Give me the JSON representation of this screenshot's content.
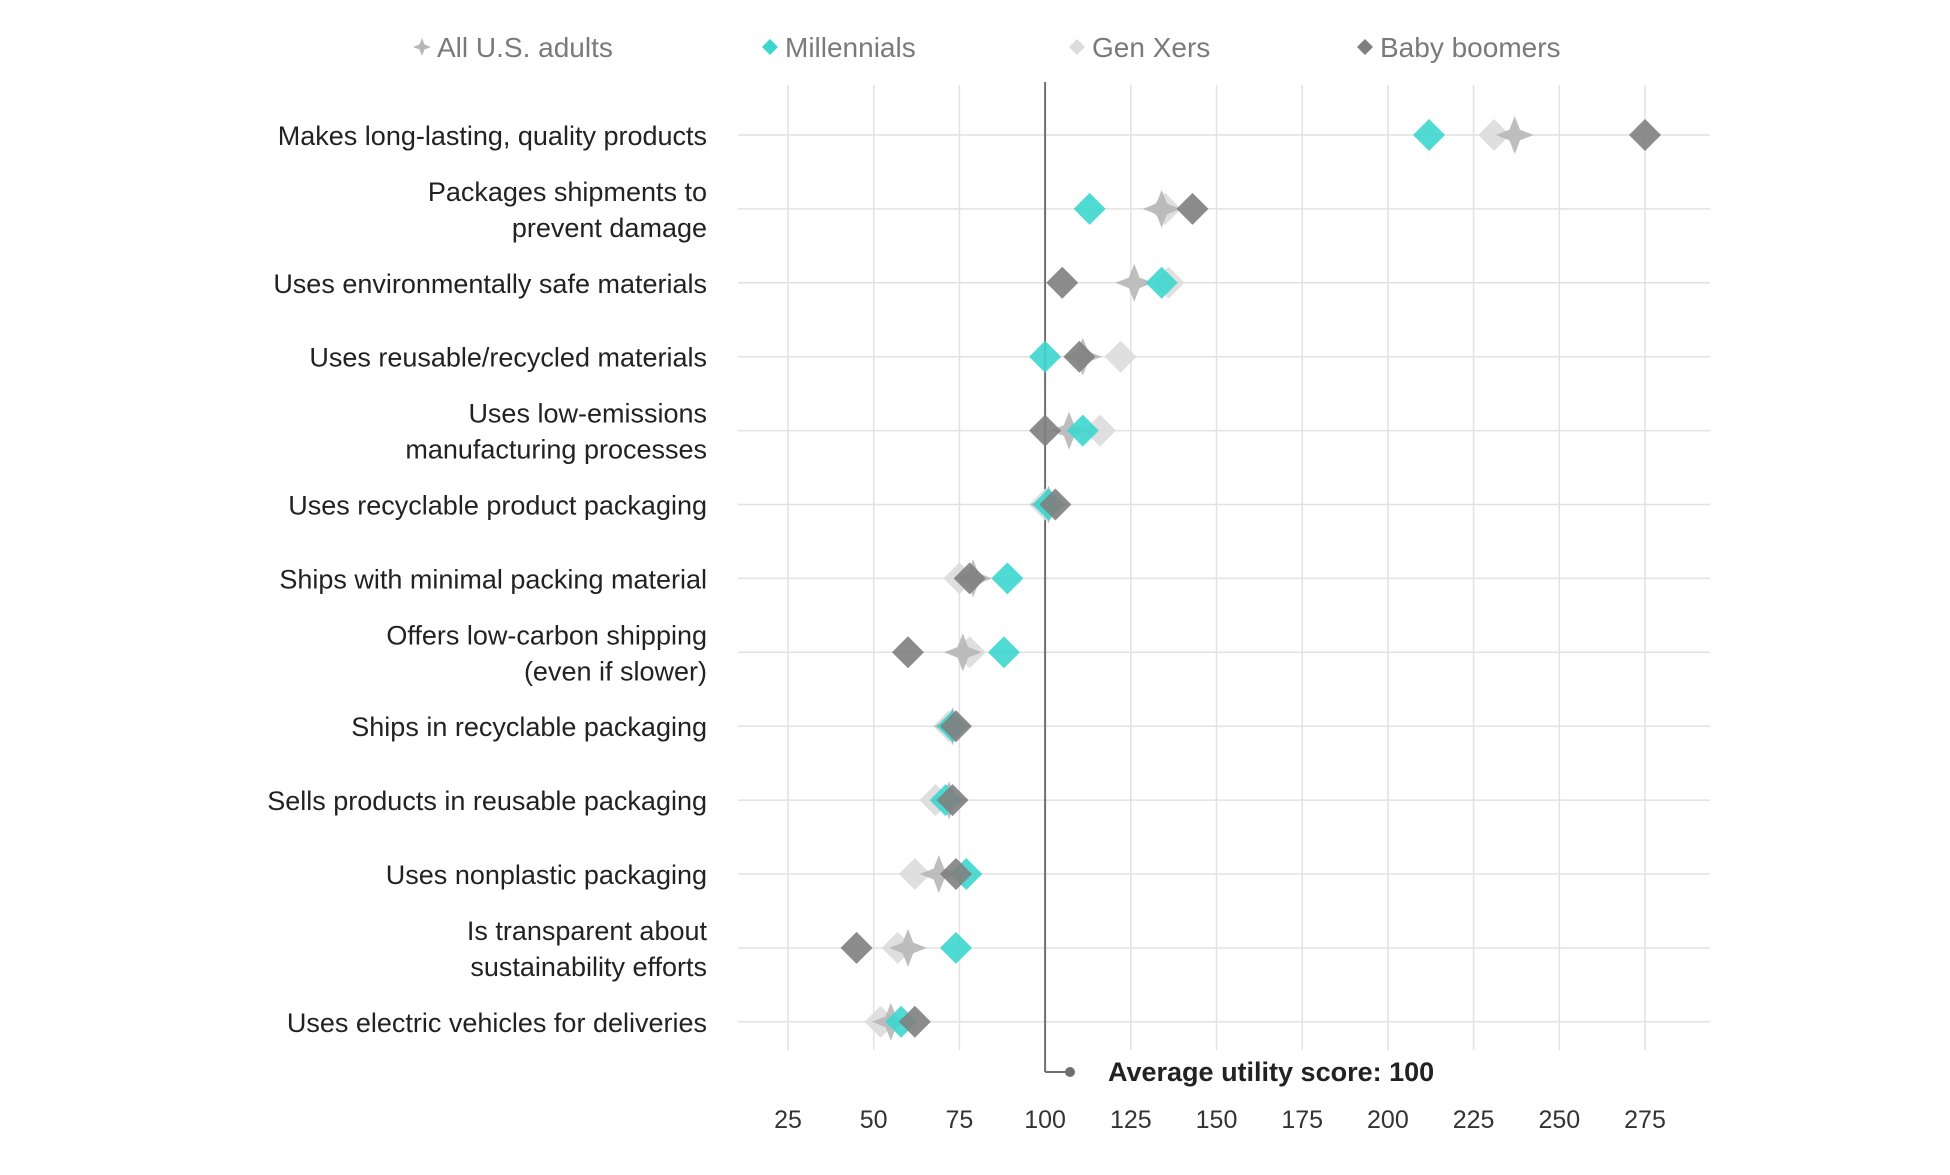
{
  "chart_data": {
    "type": "scatter",
    "title": "",
    "xlabel": "",
    "ylabel": "",
    "x_ticks": [
      25,
      50,
      75,
      100,
      125,
      150,
      175,
      200,
      225,
      250,
      275
    ],
    "xlim": [
      10,
      295
    ],
    "grid": true,
    "legend_position": "top",
    "reference_line": {
      "value": 100,
      "label": "Average utility score: 100"
    },
    "categories": [
      [
        "Makes long-lasting, quality products"
      ],
      [
        "Packages shipments to",
        "prevent damage"
      ],
      [
        "Uses environmentally safe materials"
      ],
      [
        "Uses reusable/recycled materials"
      ],
      [
        "Uses low-emissions",
        "manufacturing processes"
      ],
      [
        "Uses recyclable product packaging"
      ],
      [
        "Ships with minimal packing material"
      ],
      [
        "Offers low-carbon shipping",
        "(even if slower)"
      ],
      [
        "Ships in recyclable packaging"
      ],
      [
        "Sells products in reusable packaging"
      ],
      [
        "Uses nonplastic packaging"
      ],
      [
        "Is transparent about",
        "sustainability efforts"
      ],
      [
        "Uses electric vehicles for deliveries"
      ]
    ],
    "series": [
      {
        "name": "Gen Xers",
        "color": "#dcdcdc",
        "marker": "diamond",
        "values": [
          231,
          135,
          136,
          122,
          116,
          100,
          75,
          78,
          72,
          68,
          62,
          57,
          52
        ]
      },
      {
        "name": "All U.S. adults",
        "color": "#b7b7b7",
        "marker": "star",
        "values": [
          237,
          134,
          126,
          111,
          107,
          101,
          79,
          76,
          73,
          72,
          69,
          60,
          55
        ]
      },
      {
        "name": "Millennials",
        "color": "#3dd6cf",
        "marker": "diamond",
        "values": [
          212,
          113,
          134,
          100,
          111,
          101,
          89,
          88,
          73,
          71,
          77,
          74,
          58
        ]
      },
      {
        "name": "Baby boomers",
        "color": "#7f7f7f",
        "marker": "diamond",
        "values": [
          275,
          143,
          105,
          110,
          100,
          103,
          78,
          60,
          74,
          73,
          74,
          45,
          62
        ]
      }
    ],
    "legend": [
      {
        "name": "All U.S. adults",
        "color": "#b7b7b7",
        "marker": "star"
      },
      {
        "name": "Millennials",
        "color": "#3dd6cf",
        "marker": "diamond"
      },
      {
        "name": "Gen Xers",
        "color": "#dcdcdc",
        "marker": "diamond"
      },
      {
        "name": "Baby boomers",
        "color": "#7f7f7f",
        "marker": "diamond"
      }
    ]
  }
}
